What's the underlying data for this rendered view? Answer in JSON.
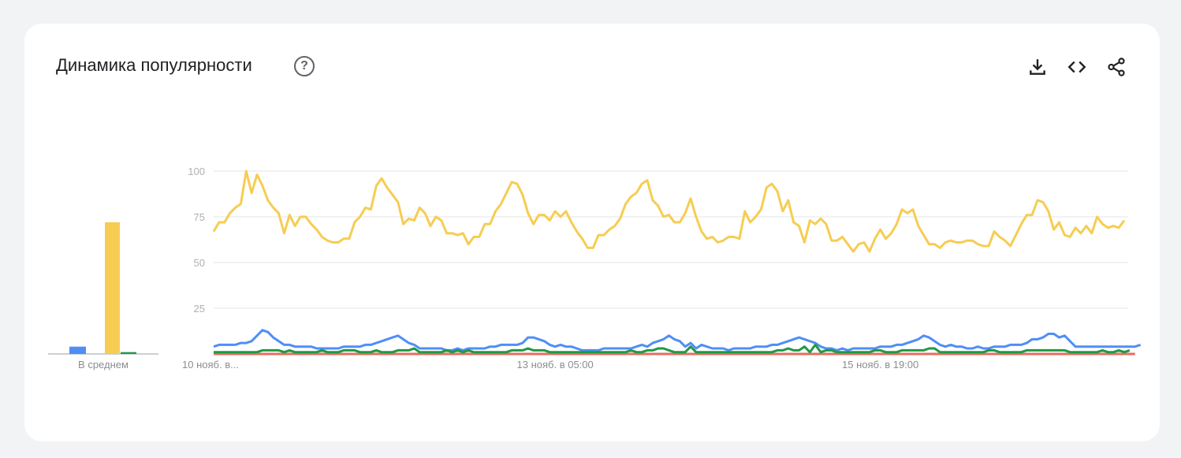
{
  "header": {
    "title": "Динамика популярности",
    "help_icon": "help-circle-icon"
  },
  "toolbar": [
    {
      "name": "download-icon",
      "label": "download"
    },
    {
      "name": "embed-icon",
      "label": "embed"
    },
    {
      "name": "share-icon",
      "label": "share"
    }
  ],
  "colors": {
    "yellow": "#f6cd52",
    "blue": "#4f8ef5",
    "green": "#1e9a45",
    "red": "#e66d5e",
    "grid": "#e6e6e6",
    "baseline": "#9aa0a6"
  },
  "chart_data": [
    {
      "type": "bar",
      "xlabel": "В среднем",
      "series": [
        {
          "color": "#4f8ef5",
          "value": 4
        },
        {
          "color": "#f6cd52",
          "value": 72
        },
        {
          "color": "#1e9a45",
          "value": 1
        },
        {
          "color": "#e66d5e",
          "value": 0
        }
      ],
      "ylim": [
        0,
        100
      ]
    },
    {
      "type": "line",
      "ylim": [
        0,
        100
      ],
      "yticks": [
        25,
        50,
        75,
        100
      ],
      "xtick_labels": [
        "10 нояб. в...",
        "13 нояб. в 05:00",
        "15 нояб. в 19:00"
      ],
      "xtick_index": [
        0,
        63,
        123
      ],
      "grid": true,
      "series": [
        {
          "color": "#f6cd52",
          "values": [
            67,
            72,
            72,
            77,
            80,
            82,
            100,
            88,
            98,
            92,
            84,
            80,
            77,
            66,
            76,
            70,
            75,
            75,
            71,
            68,
            64,
            62,
            61,
            61,
            63,
            63,
            72,
            75,
            80,
            79,
            92,
            96,
            91,
            87,
            83,
            71,
            74,
            73,
            80,
            77,
            70,
            75,
            73,
            66,
            66,
            65,
            66,
            60,
            64,
            64,
            71,
            71,
            78,
            82,
            88,
            94,
            93,
            87,
            77,
            71,
            76,
            76,
            73,
            78,
            75,
            78,
            72,
            67,
            63,
            58,
            58,
            65,
            65,
            68,
            70,
            74,
            82,
            86,
            88,
            93,
            95,
            84,
            81,
            75,
            76,
            72,
            72,
            77,
            85,
            75,
            67,
            63,
            64,
            61,
            62,
            64,
            64,
            63,
            78,
            72,
            75,
            79,
            91,
            93,
            89,
            78,
            84,
            72,
            70,
            61,
            73,
            71,
            74,
            71,
            62,
            62,
            64,
            60,
            56,
            60,
            61,
            56,
            63,
            68,
            63,
            66,
            71,
            79,
            77,
            79,
            70,
            65,
            60,
            60,
            58,
            61,
            62,
            61,
            61,
            62,
            62,
            60,
            59,
            59,
            67,
            64,
            62,
            59,
            65,
            71,
            76,
            76,
            84,
            83,
            78,
            68,
            72,
            65,
            64,
            69,
            66,
            70,
            66,
            75,
            71,
            69,
            70,
            69,
            73
          ]
        },
        {
          "color": "#4f8ef5",
          "values": [
            4,
            5,
            5,
            5,
            5,
            6,
            6,
            7,
            10,
            13,
            12,
            9,
            7,
            5,
            5,
            4,
            4,
            4,
            4,
            3,
            3,
            3,
            3,
            3,
            4,
            4,
            4,
            4,
            5,
            5,
            6,
            7,
            8,
            9,
            10,
            8,
            6,
            5,
            3,
            3,
            3,
            3,
            3,
            2,
            2,
            3,
            2,
            3,
            3,
            3,
            3,
            4,
            4,
            5,
            5,
            5,
            5,
            6,
            9,
            9,
            8,
            7,
            5,
            4,
            5,
            4,
            4,
            3,
            2,
            2,
            2,
            2,
            3,
            3,
            3,
            3,
            3,
            3,
            4,
            5,
            4,
            6,
            7,
            8,
            10,
            8,
            7,
            4,
            6,
            3,
            5,
            4,
            3,
            3,
            3,
            2,
            3,
            3,
            3,
            3,
            4,
            4,
            4,
            5,
            5,
            6,
            7,
            8,
            9,
            8,
            7,
            6,
            4,
            3,
            3,
            2,
            3,
            2,
            3,
            3,
            3,
            3,
            3,
            4,
            4,
            4,
            5,
            5,
            6,
            7,
            8,
            10,
            9,
            7,
            5,
            4,
            5,
            4,
            4,
            3,
            3,
            4,
            3,
            3,
            4,
            4,
            4,
            5,
            5,
            5,
            6,
            8,
            8,
            9,
            11,
            11,
            9,
            10,
            7,
            4,
            4,
            4,
            4,
            4,
            4,
            4,
            4,
            4,
            4,
            4,
            4,
            5
          ]
        },
        {
          "color": "#1e9a45",
          "values": [
            1,
            1,
            1,
            1,
            1,
            1,
            1,
            1,
            1,
            2,
            2,
            2,
            2,
            1,
            2,
            1,
            1,
            1,
            1,
            1,
            2,
            1,
            1,
            1,
            2,
            2,
            2,
            1,
            1,
            1,
            2,
            1,
            1,
            1,
            2,
            2,
            2,
            3,
            1,
            1,
            1,
            1,
            1,
            2,
            1,
            2,
            1,
            2,
            1,
            1,
            1,
            1,
            1,
            1,
            1,
            2,
            2,
            2,
            3,
            2,
            2,
            2,
            1,
            1,
            1,
            1,
            1,
            1,
            1,
            1,
            1,
            1,
            1,
            1,
            1,
            1,
            1,
            2,
            1,
            1,
            2,
            2,
            3,
            3,
            2,
            1,
            1,
            1,
            4,
            1,
            1,
            1,
            1,
            1,
            1,
            1,
            1,
            1,
            1,
            1,
            1,
            1,
            1,
            1,
            2,
            2,
            3,
            2,
            2,
            4,
            1,
            5,
            1,
            2,
            2,
            1,
            1,
            1,
            1,
            1,
            1,
            1,
            2,
            2,
            1,
            1,
            1,
            2,
            2,
            2,
            2,
            2,
            3,
            3,
            1,
            1,
            1,
            1,
            1,
            1,
            1,
            1,
            1,
            2,
            2,
            1,
            1,
            1,
            1,
            1,
            2,
            2,
            2,
            2,
            2,
            2,
            2,
            2,
            1,
            1,
            1,
            1,
            1,
            1,
            2,
            1,
            1,
            2,
            1,
            2
          ]
        },
        {
          "color": "#e66d5e",
          "values": [
            0,
            0,
            0,
            0,
            0,
            0,
            0,
            0,
            0,
            0,
            0,
            0,
            0,
            0,
            0,
            0,
            0,
            0,
            0,
            0,
            0,
            0,
            0,
            0,
            0,
            0,
            0,
            0,
            0,
            0,
            0,
            0,
            0,
            0,
            0,
            0,
            0,
            0,
            0,
            0,
            0,
            0,
            0,
            0,
            0,
            0,
            0,
            0,
            0,
            0,
            0,
            0,
            0,
            0,
            0,
            0,
            0,
            0,
            0,
            0,
            0,
            0,
            0,
            0,
            0,
            0,
            0,
            0,
            0,
            0,
            0,
            0,
            0,
            0,
            0,
            0,
            0,
            0,
            0,
            0,
            0,
            0,
            0,
            0,
            0,
            0,
            0,
            0,
            0,
            0,
            0,
            0,
            0,
            0,
            0,
            0,
            0,
            0,
            0,
            0,
            0,
            0,
            0,
            0,
            0,
            0,
            0,
            0,
            0,
            0,
            0,
            0,
            0,
            0,
            0,
            0,
            0,
            0,
            0,
            0,
            0,
            0,
            0,
            0,
            0,
            0,
            0,
            0,
            0,
            0,
            0,
            0,
            0,
            0,
            0,
            0,
            0,
            0,
            0,
            0,
            0,
            0,
            0,
            0,
            0,
            0,
            0,
            0,
            0,
            0,
            0,
            0,
            0,
            0,
            0,
            0,
            0,
            0,
            0,
            0,
            0,
            0,
            0,
            0,
            0,
            0,
            0,
            0,
            0,
            0,
            0
          ]
        }
      ]
    }
  ]
}
